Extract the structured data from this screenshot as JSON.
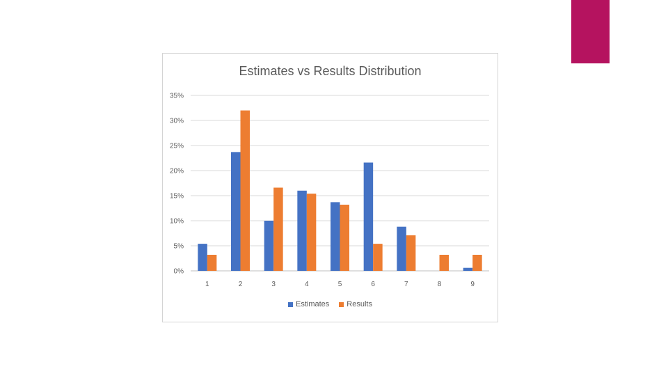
{
  "slide": {
    "accent_color": "#b5135f"
  },
  "chart_data": {
    "type": "bar",
    "title": "Estimates vs Results Distribution",
    "xlabel": "",
    "ylabel": "",
    "categories": [
      "1",
      "2",
      "3",
      "4",
      "5",
      "6",
      "7",
      "8",
      "9"
    ],
    "series": [
      {
        "name": "Estimates",
        "color": "#4472c4",
        "values": [
          5.4,
          23.7,
          10.0,
          16.0,
          13.7,
          21.6,
          8.8,
          0,
          0.6
        ]
      },
      {
        "name": "Results",
        "color": "#ed7d31",
        "values": [
          3.2,
          32.0,
          16.6,
          15.4,
          13.2,
          5.4,
          7.1,
          3.2,
          3.2
        ]
      }
    ],
    "ylim": [
      0,
      35
    ],
    "yticks": [
      "0%",
      "5%",
      "10%",
      "15%",
      "20%",
      "25%",
      "30%",
      "35%"
    ],
    "grid": true,
    "legend": "bottom"
  }
}
